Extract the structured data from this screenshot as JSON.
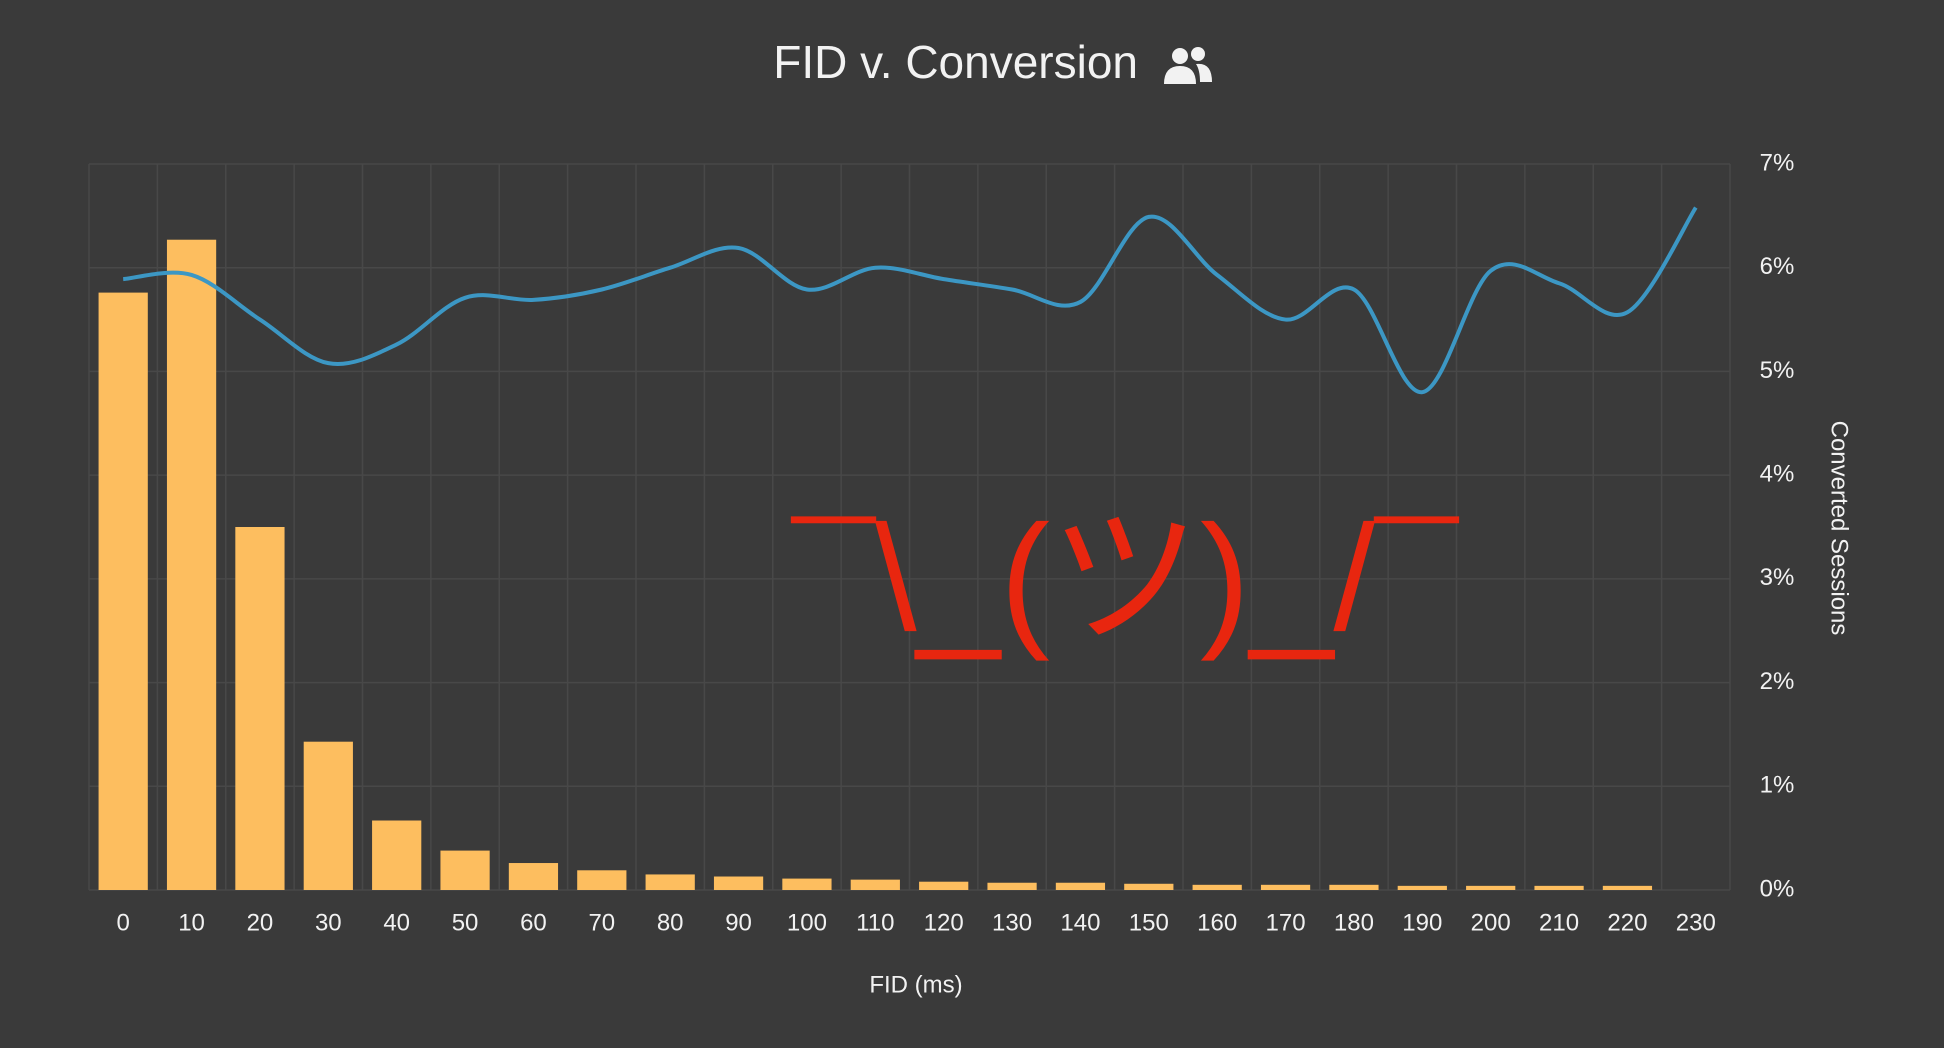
{
  "chart_data": {
    "type": "bar_line",
    "title": "FID v. Conversion",
    "annotation": "¯\\_(ツ)_/¯",
    "x_label": "FID (ms)",
    "y_label": "Converted Sessions",
    "categories": [
      "0",
      "10",
      "20",
      "30",
      "40",
      "50",
      "60",
      "70",
      "80",
      "90",
      "100",
      "110",
      "120",
      "130",
      "140",
      "150",
      "160",
      "170",
      "180",
      "190",
      "200",
      "210",
      "220",
      "230"
    ],
    "series": [
      {
        "type": "bar",
        "color": "#fdbe5f",
        "values": [
          5.76,
          6.27,
          3.5,
          1.43,
          0.67,
          0.38,
          0.26,
          0.19,
          0.15,
          0.13,
          0.11,
          0.1,
          0.08,
          0.07,
          0.07,
          0.06,
          0.05,
          0.05,
          0.05,
          0.04,
          0.04,
          0.04,
          0.04,
          null
        ]
      },
      {
        "type": "line",
        "color": "#3c97c4",
        "values": [
          5.89,
          5.93,
          5.5,
          5.08,
          5.26,
          5.71,
          5.69,
          5.79,
          6.0,
          6.19,
          5.79,
          6.0,
          5.89,
          5.79,
          5.67,
          6.49,
          5.93,
          5.5,
          5.79,
          4.8,
          5.97,
          5.85,
          5.57,
          6.58
        ]
      }
    ],
    "ylim": [
      0,
      7
    ],
    "yticks": [
      {
        "value": 0,
        "label": "0%"
      },
      {
        "value": 1,
        "label": "1%"
      },
      {
        "value": 2,
        "label": "2%"
      },
      {
        "value": 3,
        "label": "3%"
      },
      {
        "value": 4,
        "label": "4%"
      },
      {
        "value": 5,
        "label": "5%"
      },
      {
        "value": 6,
        "label": "6%"
      },
      {
        "value": 7,
        "label": "7%"
      }
    ],
    "grid": true
  }
}
